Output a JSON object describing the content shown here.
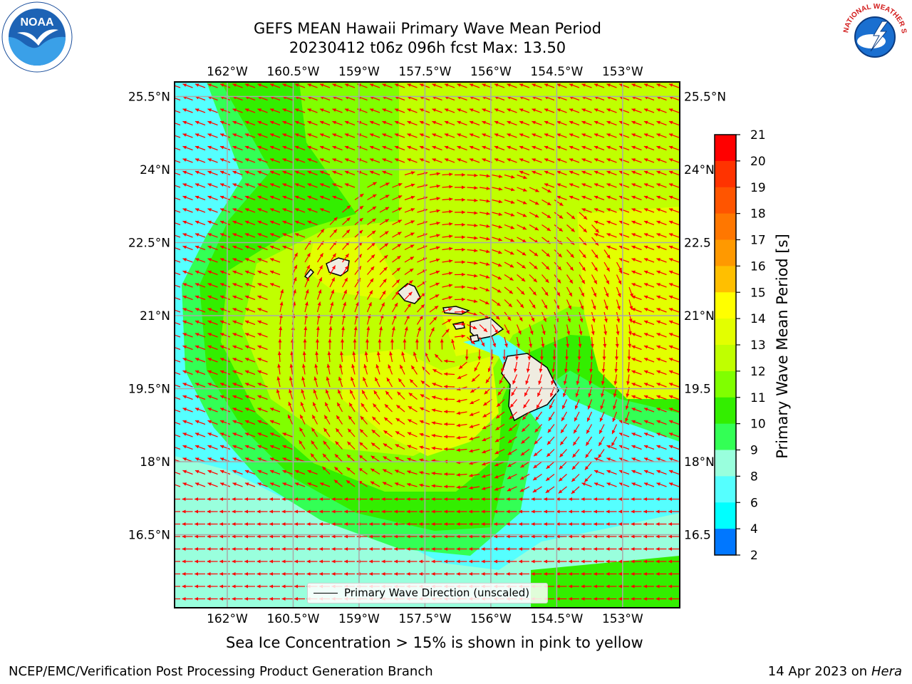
{
  "header": {
    "title_line1": "GEFS MEAN Hawaii Primary Wave Mean Period",
    "title_line2": "20230412 t06z 096h fcst   Max: 13.50"
  },
  "logos": {
    "left_icon": "noaa-logo-icon",
    "left_text": "NOAA",
    "right_icon": "nws-logo-icon",
    "right_text": "NATIONAL WEATHER SERVICE"
  },
  "map": {
    "projection": "plate-carree",
    "lon_range": [
      -163.2,
      -151.7
    ],
    "lat_range": [
      15.0,
      25.8
    ],
    "lon_ticks": [
      "162°W",
      "160.5°W",
      "159°W",
      "157.5°W",
      "156°W",
      "154.5°W",
      "153°W"
    ],
    "lon_tick_values": [
      -162,
      -160.5,
      -159,
      -157.5,
      -156,
      -154.5,
      -153
    ],
    "lat_ticks_left": [
      "25.5°N",
      "24°N",
      "22.5°N",
      "21°N",
      "19.5°N",
      "18°N",
      "16.5°N"
    ],
    "lat_ticks_right": [
      "25.5°N",
      "24°N",
      "22.5",
      "21°N",
      "19.5",
      "18°N",
      "16.5"
    ],
    "lat_tick_values": [
      25.5,
      24,
      22.5,
      21,
      19.5,
      18,
      16.5
    ],
    "grid": true,
    "arrow_color": "#ff0000",
    "land_color": "#efece0",
    "legend_label": "Primary Wave Direction (unscaled)"
  },
  "colorbar": {
    "title": "Primary Wave Mean Period [s]",
    "ticks": [
      "21",
      "20",
      "19",
      "18",
      "17",
      "16",
      "15",
      "14",
      "13",
      "12",
      "11",
      "10",
      "9",
      "8",
      "6",
      "4",
      "2"
    ],
    "colors": [
      "#ff0000",
      "#ff3300",
      "#ff5500",
      "#ff7700",
      "#ff9900",
      "#ffbf00",
      "#ffff00",
      "#e3ff00",
      "#c0ff00",
      "#80ff00",
      "#33ee00",
      "#33ff55",
      "#99ffdd",
      "#55ffff",
      "#00ffff",
      "#0077ff",
      "#0000ff"
    ]
  },
  "notes": {
    "sea_ice": "Sea Ice Concentration > 15% is shown in pink to yellow",
    "footer_left": "NCEP/EMC/Verification Post Processing Product Generation Branch",
    "footer_date": "14 Apr 2023 on ",
    "footer_machine": "Hera"
  }
}
